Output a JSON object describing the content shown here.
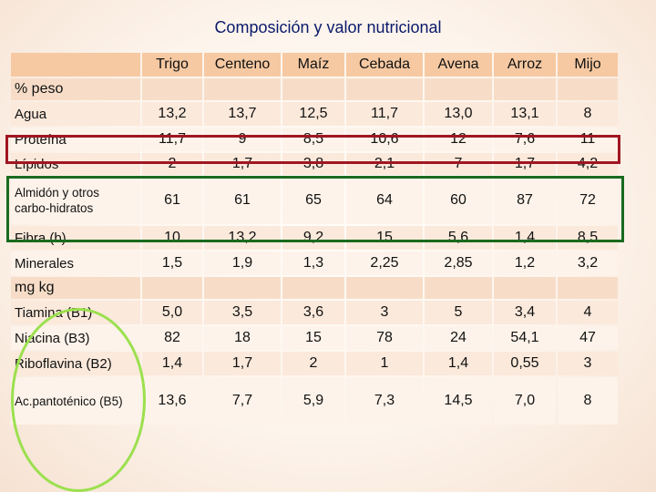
{
  "title": "Composición y valor nutricional",
  "columns": [
    "Trigo",
    "Centeno",
    "Maíz",
    "Cebada",
    "Avena",
    "Arroz",
    "Mijo"
  ],
  "section_percent": "% peso",
  "section_mg": "mg kg",
  "rows_percent": [
    {
      "label": "Agua",
      "values": [
        "13,2",
        "13,7",
        "12,5",
        "11,7",
        "13,0",
        "13,1",
        "8"
      ]
    },
    {
      "label": "Proteína",
      "values": [
        "11,7",
        "9",
        "8,5",
        "10,6",
        "12",
        "7,6",
        "11"
      ]
    },
    {
      "label": "Lípidos",
      "values": [
        "2",
        "1,7",
        "3,8",
        "2,1",
        "7",
        "1,7",
        "4,2"
      ]
    },
    {
      "label": "Almidón y otros carbo-hidratos",
      "values": [
        "61",
        "61",
        "65",
        "64",
        "60",
        "87",
        "72"
      ]
    },
    {
      "label": "Fibra (b)",
      "values": [
        "10",
        "13,2",
        "9,2",
        "15",
        "5,6",
        "1,4",
        "8,5"
      ]
    },
    {
      "label": "Minerales",
      "values": [
        "1,5",
        "1,9",
        "1,3",
        "2,25",
        "2,85",
        "1,2",
        "3,2"
      ]
    }
  ],
  "rows_mg": [
    {
      "label": "Tiamina (B1)",
      "values": [
        "5,0",
        "3,5",
        "3,6",
        "3",
        "5",
        "3,4",
        "4"
      ]
    },
    {
      "label": "Niacina (B3)",
      "values": [
        "82",
        "18",
        "15",
        "78",
        "24",
        "54,1",
        "47"
      ]
    },
    {
      "label": "Riboflavina (B2)",
      "values": [
        "1,4",
        "1,7",
        "2",
        "1",
        "1,4",
        "0,55",
        "3"
      ]
    },
    {
      "label": "Ac.pantoténico (B5)",
      "values": [
        "13,6",
        "7,7",
        "5,9",
        "7,3",
        "14,5",
        "7,0",
        "8"
      ]
    }
  ],
  "colors": {
    "title": "#0a1a6a",
    "header_fill": "#f6c9a2",
    "row_odd": "#fbe9db",
    "row_even": "#fdf3ea",
    "highlight_red": "#a01622",
    "highlight_green": "#1a6b1f",
    "highlight_oval": "#9be04e"
  }
}
